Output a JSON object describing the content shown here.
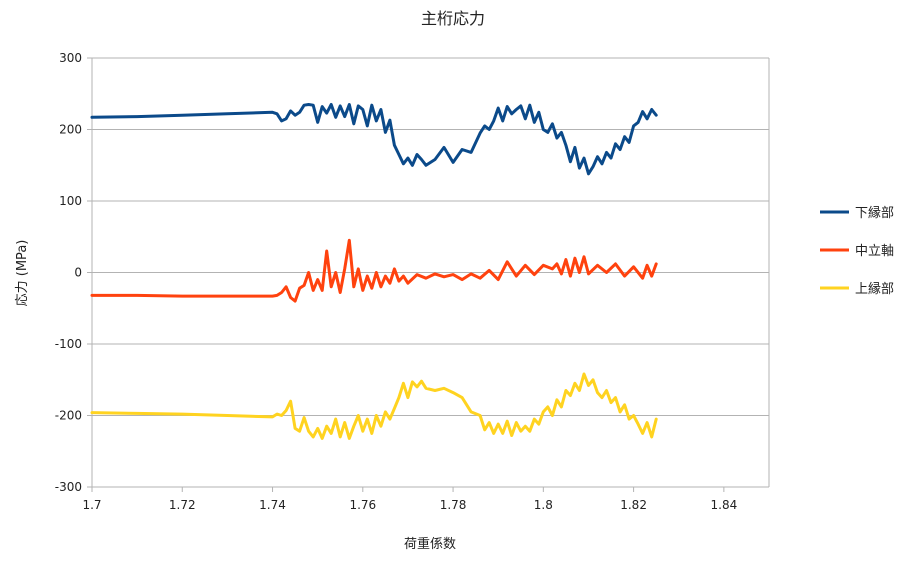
{
  "chart_data": {
    "type": "line",
    "title": "主桁応力",
    "xlabel": "荷重係数",
    "ylabel": "応力 (MPa)",
    "xlim": [
      1.7,
      1.85
    ],
    "ylim": [
      -300,
      300
    ],
    "xticks": [
      1.7,
      1.72,
      1.74,
      1.76,
      1.78,
      1.8,
      1.82,
      1.84
    ],
    "xtick_labels": [
      "1.7",
      "1.72",
      "1.74",
      "1.76",
      "1.78",
      "1.8",
      "1.82",
      "1.84"
    ],
    "yticks": [
      300,
      200,
      100,
      0,
      -100,
      -200,
      -300
    ],
    "ytick_labels": [
      "300",
      "200",
      "100",
      "0",
      "-100",
      "-200",
      "-300"
    ],
    "grid": "horizontal",
    "legend_position": "right",
    "series": [
      {
        "name": "下縁部",
        "color": "#0b4a8a",
        "points": [
          [
            1.7,
            217
          ],
          [
            1.71,
            218
          ],
          [
            1.72,
            220
          ],
          [
            1.73,
            222
          ],
          [
            1.74,
            224
          ],
          [
            1.741,
            222
          ],
          [
            1.742,
            212
          ],
          [
            1.743,
            215
          ],
          [
            1.744,
            226
          ],
          [
            1.745,
            220
          ],
          [
            1.746,
            224
          ],
          [
            1.747,
            234
          ],
          [
            1.748,
            235
          ],
          [
            1.749,
            234
          ],
          [
            1.75,
            210
          ],
          [
            1.751,
            232
          ],
          [
            1.752,
            223
          ],
          [
            1.753,
            235
          ],
          [
            1.754,
            217
          ],
          [
            1.755,
            233
          ],
          [
            1.756,
            218
          ],
          [
            1.757,
            235
          ],
          [
            1.758,
            208
          ],
          [
            1.759,
            233
          ],
          [
            1.76,
            228
          ],
          [
            1.761,
            205
          ],
          [
            1.762,
            234
          ],
          [
            1.763,
            212
          ],
          [
            1.764,
            228
          ],
          [
            1.765,
            196
          ],
          [
            1.766,
            213
          ],
          [
            1.767,
            178
          ],
          [
            1.768,
            165
          ],
          [
            1.769,
            152
          ],
          [
            1.77,
            160
          ],
          [
            1.771,
            150
          ],
          [
            1.772,
            165
          ],
          [
            1.773,
            158
          ],
          [
            1.774,
            150
          ],
          [
            1.776,
            158
          ],
          [
            1.778,
            175
          ],
          [
            1.78,
            154
          ],
          [
            1.782,
            172
          ],
          [
            1.784,
            168
          ],
          [
            1.786,
            195
          ],
          [
            1.787,
            205
          ],
          [
            1.788,
            200
          ],
          [
            1.789,
            212
          ],
          [
            1.79,
            230
          ],
          [
            1.791,
            212
          ],
          [
            1.792,
            232
          ],
          [
            1.793,
            222
          ],
          [
            1.794,
            228
          ],
          [
            1.795,
            233
          ],
          [
            1.796,
            215
          ],
          [
            1.797,
            234
          ],
          [
            1.798,
            210
          ],
          [
            1.799,
            224
          ],
          [
            1.8,
            200
          ],
          [
            1.801,
            196
          ],
          [
            1.802,
            208
          ],
          [
            1.803,
            188
          ],
          [
            1.804,
            196
          ],
          [
            1.805,
            178
          ],
          [
            1.806,
            155
          ],
          [
            1.807,
            175
          ],
          [
            1.808,
            146
          ],
          [
            1.809,
            160
          ],
          [
            1.81,
            138
          ],
          [
            1.811,
            148
          ],
          [
            1.812,
            162
          ],
          [
            1.813,
            152
          ],
          [
            1.814,
            168
          ],
          [
            1.815,
            160
          ],
          [
            1.816,
            180
          ],
          [
            1.817,
            172
          ],
          [
            1.818,
            190
          ],
          [
            1.819,
            182
          ],
          [
            1.82,
            205
          ],
          [
            1.821,
            210
          ],
          [
            1.822,
            225
          ],
          [
            1.823,
            215
          ],
          [
            1.824,
            228
          ],
          [
            1.825,
            220
          ]
        ]
      },
      {
        "name": "中立軸",
        "color": "#ff420e",
        "points": [
          [
            1.7,
            -32
          ],
          [
            1.71,
            -32
          ],
          [
            1.72,
            -33
          ],
          [
            1.73,
            -33
          ],
          [
            1.74,
            -33
          ],
          [
            1.741,
            -32
          ],
          [
            1.742,
            -28
          ],
          [
            1.743,
            -20
          ],
          [
            1.744,
            -35
          ],
          [
            1.745,
            -40
          ],
          [
            1.746,
            -22
          ],
          [
            1.747,
            -18
          ],
          [
            1.748,
            0
          ],
          [
            1.749,
            -25
          ],
          [
            1.75,
            -10
          ],
          [
            1.751,
            -25
          ],
          [
            1.752,
            30
          ],
          [
            1.753,
            -20
          ],
          [
            1.754,
            0
          ],
          [
            1.755,
            -28
          ],
          [
            1.756,
            5
          ],
          [
            1.757,
            45
          ],
          [
            1.758,
            -20
          ],
          [
            1.759,
            5
          ],
          [
            1.76,
            -25
          ],
          [
            1.761,
            -5
          ],
          [
            1.762,
            -22
          ],
          [
            1.763,
            0
          ],
          [
            1.764,
            -20
          ],
          [
            1.765,
            -5
          ],
          [
            1.766,
            -15
          ],
          [
            1.767,
            5
          ],
          [
            1.768,
            -12
          ],
          [
            1.769,
            -5
          ],
          [
            1.77,
            -15
          ],
          [
            1.772,
            -3
          ],
          [
            1.774,
            -8
          ],
          [
            1.776,
            -2
          ],
          [
            1.778,
            -6
          ],
          [
            1.78,
            -3
          ],
          [
            1.782,
            -10
          ],
          [
            1.784,
            -2
          ],
          [
            1.786,
            -8
          ],
          [
            1.788,
            3
          ],
          [
            1.79,
            -10
          ],
          [
            1.792,
            15
          ],
          [
            1.794,
            -5
          ],
          [
            1.796,
            10
          ],
          [
            1.798,
            -3
          ],
          [
            1.8,
            10
          ],
          [
            1.802,
            5
          ],
          [
            1.803,
            12
          ],
          [
            1.804,
            -2
          ],
          [
            1.805,
            18
          ],
          [
            1.806,
            -5
          ],
          [
            1.807,
            20
          ],
          [
            1.808,
            0
          ],
          [
            1.809,
            22
          ],
          [
            1.81,
            -2
          ],
          [
            1.812,
            10
          ],
          [
            1.814,
            0
          ],
          [
            1.816,
            12
          ],
          [
            1.818,
            -5
          ],
          [
            1.82,
            8
          ],
          [
            1.822,
            -8
          ],
          [
            1.823,
            10
          ],
          [
            1.824,
            -5
          ],
          [
            1.825,
            12
          ]
        ]
      },
      {
        "name": "上縁部",
        "color": "#ffd320",
        "points": [
          [
            1.7,
            -196
          ],
          [
            1.71,
            -197
          ],
          [
            1.72,
            -198
          ],
          [
            1.73,
            -200
          ],
          [
            1.74,
            -202
          ],
          [
            1.741,
            -198
          ],
          [
            1.742,
            -200
          ],
          [
            1.743,
            -193
          ],
          [
            1.744,
            -180
          ],
          [
            1.745,
            -218
          ],
          [
            1.746,
            -222
          ],
          [
            1.747,
            -203
          ],
          [
            1.748,
            -222
          ],
          [
            1.749,
            -230
          ],
          [
            1.75,
            -218
          ],
          [
            1.751,
            -232
          ],
          [
            1.752,
            -215
          ],
          [
            1.753,
            -225
          ],
          [
            1.754,
            -205
          ],
          [
            1.755,
            -230
          ],
          [
            1.756,
            -210
          ],
          [
            1.757,
            -232
          ],
          [
            1.758,
            -215
          ],
          [
            1.759,
            -200
          ],
          [
            1.76,
            -222
          ],
          [
            1.761,
            -205
          ],
          [
            1.762,
            -225
          ],
          [
            1.763,
            -200
          ],
          [
            1.764,
            -215
          ],
          [
            1.765,
            -195
          ],
          [
            1.766,
            -205
          ],
          [
            1.767,
            -190
          ],
          [
            1.768,
            -175
          ],
          [
            1.769,
            -155
          ],
          [
            1.77,
            -175
          ],
          [
            1.771,
            -153
          ],
          [
            1.772,
            -160
          ],
          [
            1.773,
            -152
          ],
          [
            1.774,
            -162
          ],
          [
            1.776,
            -165
          ],
          [
            1.778,
            -162
          ],
          [
            1.78,
            -168
          ],
          [
            1.782,
            -175
          ],
          [
            1.784,
            -195
          ],
          [
            1.786,
            -200
          ],
          [
            1.787,
            -220
          ],
          [
            1.788,
            -210
          ],
          [
            1.789,
            -225
          ],
          [
            1.79,
            -212
          ],
          [
            1.791,
            -225
          ],
          [
            1.792,
            -208
          ],
          [
            1.793,
            -228
          ],
          [
            1.794,
            -210
          ],
          [
            1.795,
            -222
          ],
          [
            1.796,
            -215
          ],
          [
            1.797,
            -222
          ],
          [
            1.798,
            -205
          ],
          [
            1.799,
            -212
          ],
          [
            1.8,
            -195
          ],
          [
            1.801,
            -188
          ],
          [
            1.802,
            -200
          ],
          [
            1.803,
            -178
          ],
          [
            1.804,
            -188
          ],
          [
            1.805,
            -165
          ],
          [
            1.806,
            -172
          ],
          [
            1.807,
            -155
          ],
          [
            1.808,
            -165
          ],
          [
            1.809,
            -142
          ],
          [
            1.81,
            -158
          ],
          [
            1.811,
            -150
          ],
          [
            1.812,
            -168
          ],
          [
            1.813,
            -175
          ],
          [
            1.814,
            -165
          ],
          [
            1.815,
            -182
          ],
          [
            1.816,
            -175
          ],
          [
            1.817,
            -195
          ],
          [
            1.818,
            -185
          ],
          [
            1.819,
            -205
          ],
          [
            1.82,
            -200
          ],
          [
            1.821,
            -212
          ],
          [
            1.822,
            -225
          ],
          [
            1.823,
            -210
          ],
          [
            1.824,
            -230
          ],
          [
            1.825,
            -205
          ]
        ]
      }
    ]
  }
}
